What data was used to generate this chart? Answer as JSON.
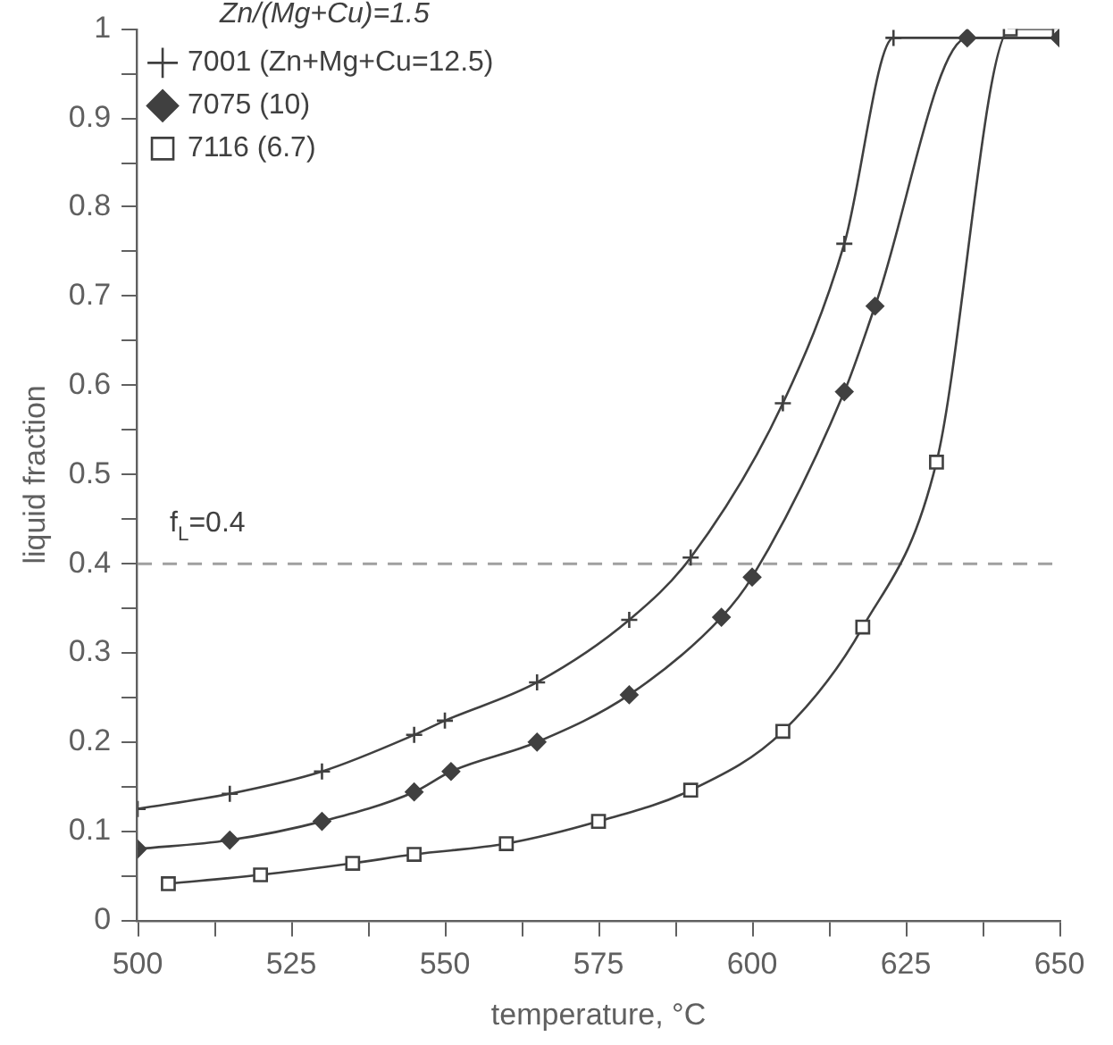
{
  "chart_data": {
    "type": "line",
    "xlabel": "temperature, °C",
    "ylabel": "liquid fraction",
    "legend_title": "Zn/(Mg+Cu)=1.5",
    "legend": "top left",
    "grid": false,
    "line_style": "solid",
    "xlim": [
      500,
      650
    ],
    "xticks": [
      500,
      {
        "value": 512.5,
        "label": null
      },
      525,
      {
        "value": 537.5,
        "label": null
      },
      550,
      {
        "value": 562.5,
        "label": null
      },
      575,
      {
        "value": 587.5,
        "label": null
      },
      600,
      {
        "value": 612.5,
        "label": null
      },
      625,
      {
        "value": 637.5,
        "label": null
      },
      650
    ],
    "ylim": [
      0,
      1
    ],
    "yticks": [
      0,
      {
        "value": 0.05,
        "label": null
      },
      0.1,
      {
        "value": 0.15,
        "label": null
      },
      0.2,
      {
        "value": 0.25,
        "label": null
      },
      0.3,
      {
        "value": 0.35,
        "label": null
      },
      0.4,
      {
        "value": 0.45,
        "label": null
      },
      0.5,
      {
        "value": 0.55,
        "label": null
      },
      0.6,
      {
        "value": 0.65,
        "label": null
      },
      0.7,
      {
        "value": 0.75,
        "label": null
      },
      0.8,
      {
        "value": 0.85,
        "label": null
      },
      0.9,
      {
        "value": 0.95,
        "label": null
      },
      1
    ],
    "ref_lines": [
      {
        "axis": "y",
        "value": 0.4,
        "label": "f$_{L}$=0.4",
        "color": "#a0a0a0",
        "line_style": "dashed"
      }
    ],
    "series": [
      {
        "name": "7001 (Zn+Mg+Cu=12.5)",
        "color": "#404040",
        "marker": "cross",
        "x": [
          500,
          515,
          530,
          545,
          550,
          565,
          580,
          590,
          605,
          615,
          623,
          650
        ],
        "values": [
          0.125,
          0.142,
          0.167,
          0.208,
          0.224,
          0.267,
          0.337,
          0.407,
          0.58,
          0.759,
          0.99,
          0.99
        ]
      },
      {
        "name": "7075 (10)",
        "color": "#404040",
        "marker": "diamond",
        "x": [
          500,
          515,
          530,
          545,
          551,
          565,
          580,
          595,
          600,
          615,
          620,
          635,
          650
        ],
        "values": [
          0.08,
          0.09,
          0.111,
          0.144,
          0.167,
          0.2,
          0.253,
          0.34,
          0.385,
          0.593,
          0.689,
          0.99,
          0.99
        ]
      },
      {
        "name": "7116 (6.7)",
        "color": "#404040",
        "marker": "square",
        "x": [
          505,
          520,
          535,
          545,
          560,
          575,
          590,
          605,
          618,
          630,
          642,
          650
        ],
        "values": [
          0.041,
          0.051,
          0.064,
          0.074,
          0.086,
          0.111,
          0.146,
          0.212,
          0.329,
          0.514,
          1,
          1
        ]
      }
    ]
  }
}
